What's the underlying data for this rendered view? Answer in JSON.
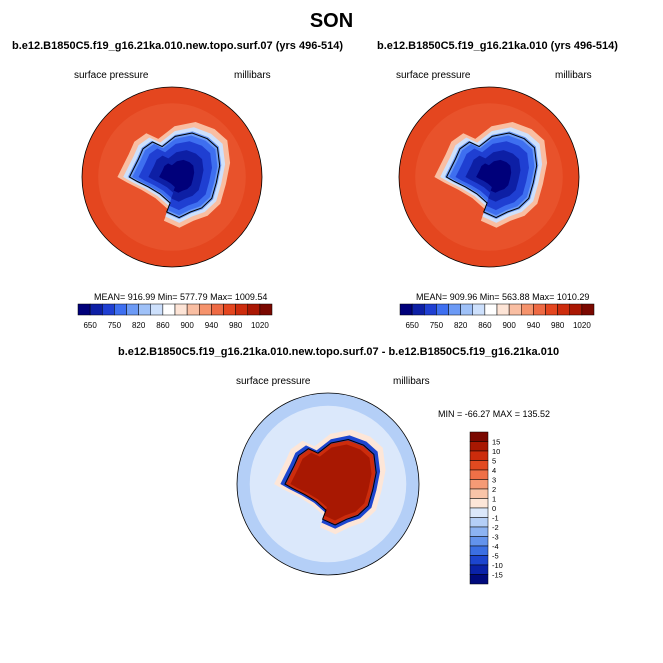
{
  "page": {
    "season": "SON"
  },
  "panels": [
    {
      "case_title": "b.e12.B1850C5.f19_g16.21ka.010.new.topo.surf.07 (yrs 496-514)",
      "variable": "surface pressure",
      "units": "millibars",
      "stats": "MEAN= 916.99  Min= 577.79  Max= 1009.54"
    },
    {
      "case_title": "b.e12.B1850C5.f19_g16.21ka.010 (yrs 496-514)",
      "variable": "surface pressure",
      "units": "millibars",
      "stats": "MEAN= 909.96  Min= 563.88  Max= 1010.29"
    },
    {
      "case_title": "b.e12.B1850C5.f19_g16.21ka.010.new.topo.surf.07 - b.e12.B1850C5.f19_g16.21ka.010",
      "variable": "surface pressure",
      "units": "millibars",
      "stats": "MIN = -66.27 MAX = 135.52"
    }
  ],
  "chart_data": [
    {
      "type": "heatmap",
      "title": "b.e12.B1850C5.f19_g16.21ka.010.new.topo.surf.07 (yrs 496-514)",
      "variable": "surface pressure",
      "units": "millibars",
      "projection": "south polar stereographic",
      "mean": 916.99,
      "min": 577.79,
      "max": 1009.54,
      "colorbar": {
        "orientation": "horizontal",
        "tick_labels": [
          "650",
          "750",
          "820",
          "860",
          "900",
          "940",
          "980",
          "1020"
        ],
        "levels": [
          650,
          700,
          750,
          800,
          820,
          840,
          860,
          880,
          900,
          920,
          940,
          960,
          980,
          1000,
          1020
        ],
        "colors": [
          "#00007a",
          "#0d1fa5",
          "#1f3fd2",
          "#3e6ff0",
          "#6c9af5",
          "#9fc1f8",
          "#cde0fc",
          "#ffffff",
          "#fde4d6",
          "#f9bea2",
          "#f5936c",
          "#ee6a44",
          "#e4461f",
          "#cd2c0d",
          "#aa1703",
          "#7a0800"
        ]
      }
    },
    {
      "type": "heatmap",
      "title": "b.e12.B1850C5.f19_g16.21ka.010 (yrs 496-514)",
      "variable": "surface pressure",
      "units": "millibars",
      "projection": "south polar stereographic",
      "mean": 909.96,
      "min": 563.88,
      "max": 1010.29,
      "colorbar": {
        "orientation": "horizontal",
        "tick_labels": [
          "650",
          "750",
          "820",
          "860",
          "900",
          "940",
          "980",
          "1020"
        ],
        "levels": [
          650,
          700,
          750,
          800,
          820,
          840,
          860,
          880,
          900,
          920,
          940,
          960,
          980,
          1000,
          1020
        ],
        "colors": [
          "#00007a",
          "#0d1fa5",
          "#1f3fd2",
          "#3e6ff0",
          "#6c9af5",
          "#9fc1f8",
          "#cde0fc",
          "#ffffff",
          "#fde4d6",
          "#f9bea2",
          "#f5936c",
          "#ee6a44",
          "#e4461f",
          "#cd2c0d",
          "#aa1703",
          "#7a0800"
        ]
      }
    },
    {
      "type": "heatmap",
      "title": "b.e12.B1850C5.f19_g16.21ka.010.new.topo.surf.07 - b.e12.B1850C5.f19_g16.21ka.010",
      "variable": "surface pressure",
      "units": "millibars",
      "projection": "south polar stereographic",
      "min": -66.27,
      "max": 135.52,
      "colorbar": {
        "orientation": "vertical",
        "tick_labels": [
          "15",
          "10",
          "5",
          "4",
          "3",
          "2",
          "1",
          "0",
          "-1",
          "-2",
          "-3",
          "-4",
          "-5",
          "-10",
          "-15"
        ],
        "levels": [
          15,
          10,
          5,
          4,
          3,
          2,
          1,
          0,
          -1,
          -2,
          -3,
          -4,
          -5,
          -10,
          -15
        ],
        "colors": [
          "#7a0800",
          "#a81802",
          "#cc2c0c",
          "#e24a20",
          "#ef7047",
          "#f59a75",
          "#f9c4a8",
          "#fde6d8",
          "#dbe8fb",
          "#b4cff7",
          "#8cb3f2",
          "#6393ec",
          "#3b6fe3",
          "#1c45cf",
          "#0a22a8",
          "#000a7c"
        ]
      }
    }
  ]
}
